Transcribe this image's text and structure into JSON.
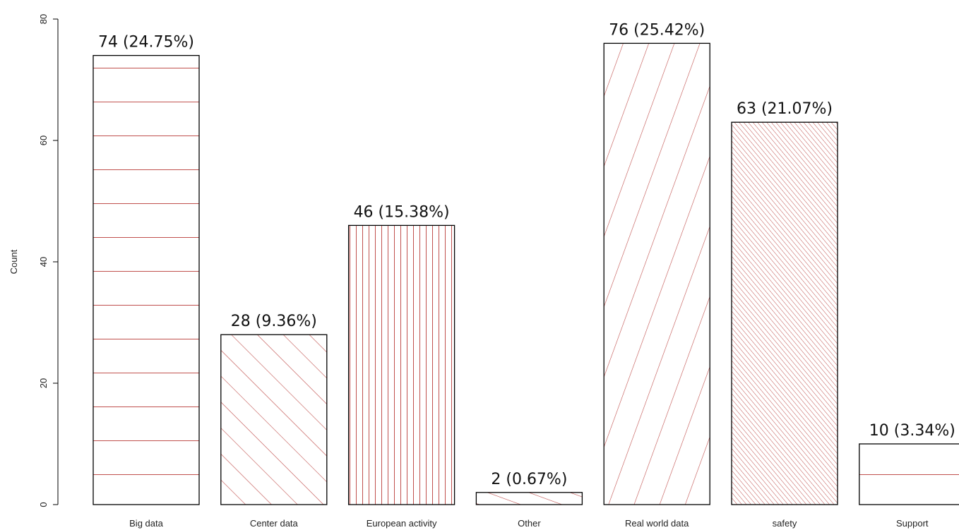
{
  "chart_data": {
    "type": "bar",
    "ylabel": "Count",
    "xlabel": "",
    "ylim": [
      0,
      80
    ],
    "yticks": [
      "0",
      "20",
      "40",
      "60",
      "80"
    ],
    "grid": false,
    "categories": [
      "Big data",
      "Center data",
      "European activity",
      "Other",
      "Real world data",
      "safety",
      "Support"
    ],
    "values": [
      74,
      28,
      46,
      2,
      76,
      63,
      10
    ],
    "value_labels": [
      "74 (24.75%)",
      "28 (9.36%)",
      "46 (15.38%)",
      "2 (0.67%)",
      "76 (25.42%)",
      "63 (21.07%)",
      "10 (3.34%)"
    ],
    "hatch": [
      "horizontal",
      "diagonal-45",
      "vertical",
      "diagonal-22",
      "diagonal-steep",
      "diagonal-dense",
      "horizontal"
    ],
    "bar_outline_color": "#000000",
    "hatch_color": "#c0504d"
  }
}
